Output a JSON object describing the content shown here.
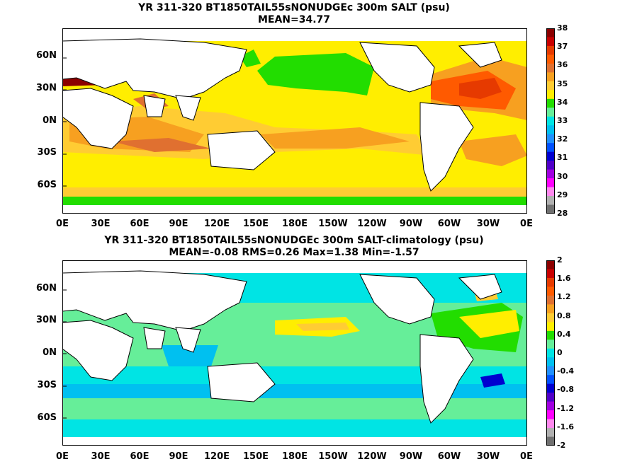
{
  "panels": [
    {
      "title": "YR 311-320 BT1850TAIL55sNONUDGEc 300m SALT (psu)",
      "subtitle": "MEAN=34.77",
      "colorbar": {
        "labels": [
          "38",
          "37",
          "36",
          "35",
          "34",
          "33",
          "32",
          "31",
          "30",
          "29",
          "28"
        ],
        "colors": [
          "#8b0000",
          "#c80000",
          "#e63a00",
          "#ff5a00",
          "#e07030",
          "#f7a020",
          "#ffcc33",
          "#ffee00",
          "#22dd00",
          "#66ee99",
          "#00e4e4",
          "#00c0f0",
          "#2090ff",
          "#0050ff",
          "#0000d0",
          "#5000c8",
          "#a000e0",
          "#ff00ff",
          "#ff88ee",
          "#b0b0b0",
          "#707070"
        ]
      },
      "lat_labels": [
        "60N",
        "30N",
        "0N",
        "30S",
        "60S"
      ],
      "lon_labels": [
        "0E",
        "30E",
        "60E",
        "90E",
        "120E",
        "150E",
        "180E",
        "150W",
        "120W",
        "90W",
        "60W",
        "30W",
        "0E"
      ]
    },
    {
      "title": "YR 311-320 BT1850TAIL55sNONUDGEc 300m SALT-climatology (psu)",
      "subtitle": "MEAN=-0.08   RMS=0.26   Max=1.38   Min=-1.57",
      "colorbar": {
        "labels": [
          "2",
          "1.6",
          "1.2",
          "0.8",
          "0.4",
          "0",
          "-0.4",
          "-0.8",
          "-1.2",
          "-1.6",
          "-2"
        ],
        "colors": [
          "#8b0000",
          "#c80000",
          "#e63a00",
          "#ff5a00",
          "#e07030",
          "#f7a020",
          "#ffcc33",
          "#ffee00",
          "#22dd00",
          "#66ee99",
          "#00e4e4",
          "#00c0f0",
          "#2090ff",
          "#0050ff",
          "#0000d0",
          "#5000c8",
          "#a000e0",
          "#ff00ff",
          "#ff88ee",
          "#b0b0b0",
          "#707070"
        ]
      },
      "lat_labels": [
        "60N",
        "30N",
        "0N",
        "30S",
        "60S"
      ],
      "lon_labels": [
        "0E",
        "30E",
        "60E",
        "90E",
        "120E",
        "150E",
        "180E",
        "150W",
        "120W",
        "90W",
        "60W",
        "30W",
        "0E"
      ]
    }
  ]
}
